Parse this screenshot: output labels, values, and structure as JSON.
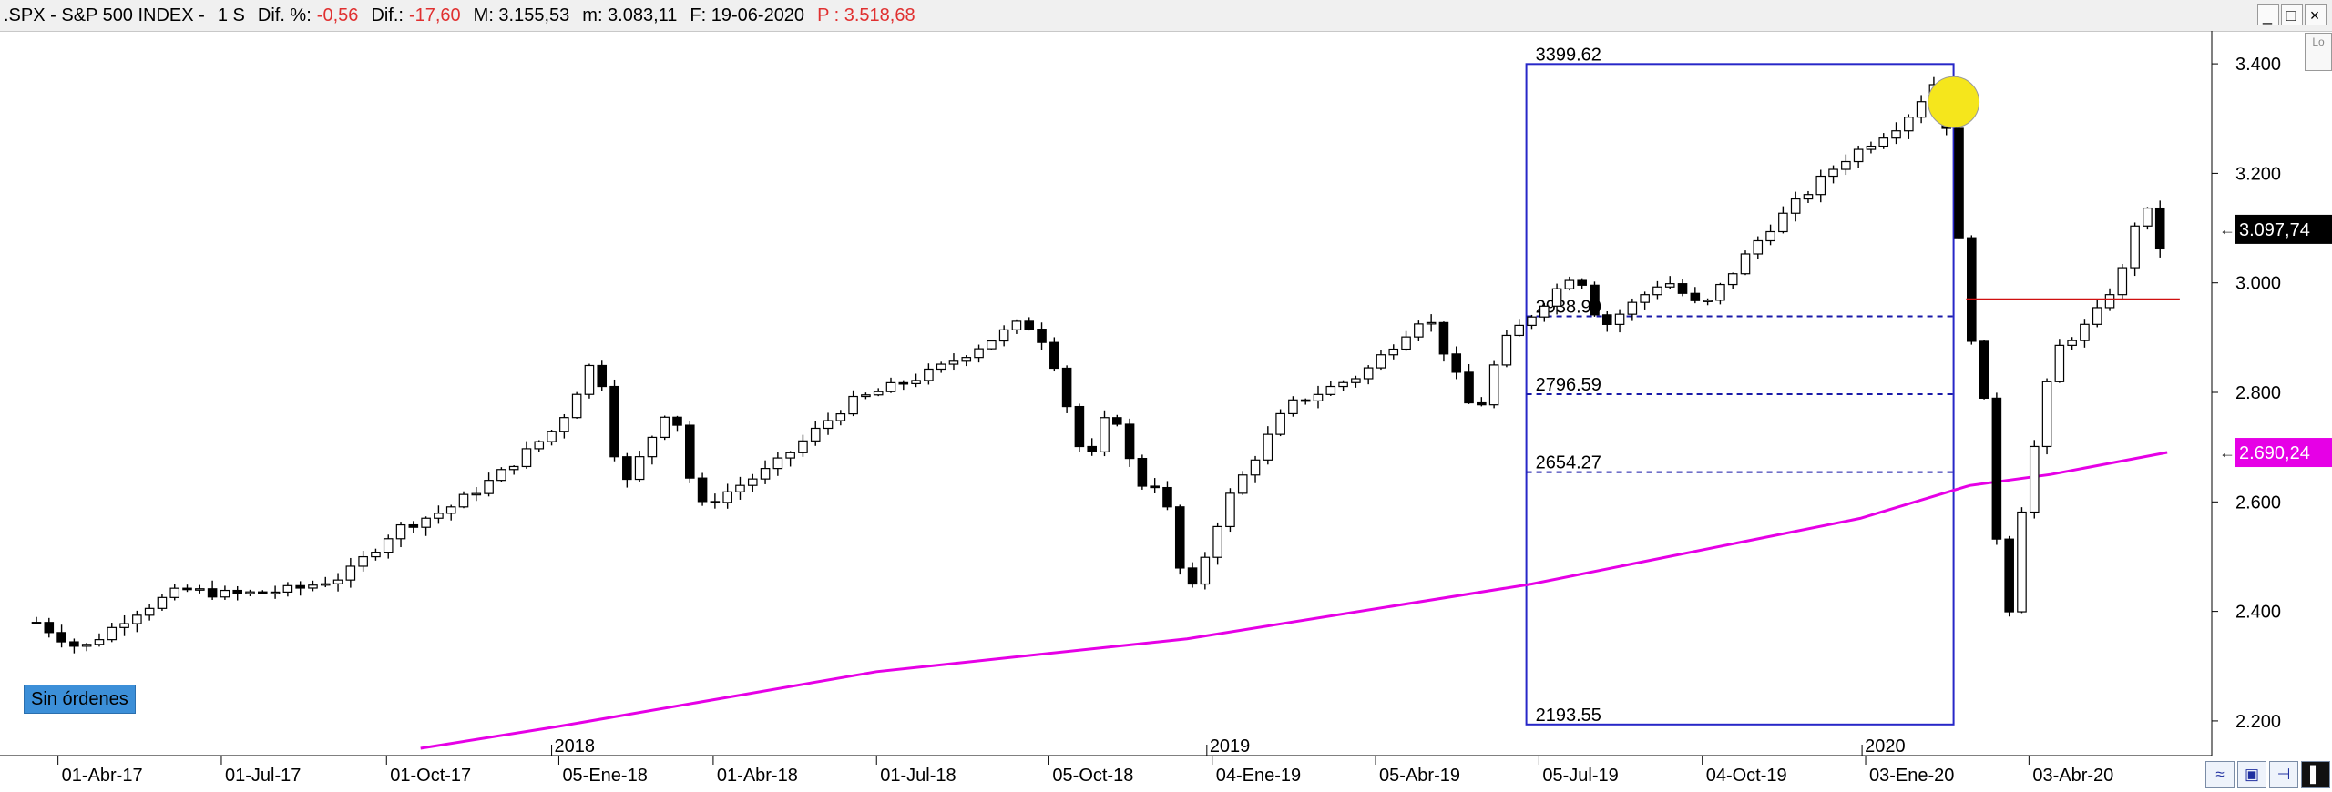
{
  "header": {
    "symbol": ".SPX - S&P 500 INDEX -",
    "period": "1 S",
    "dif_pct_label": "Dif. %:",
    "dif_pct_value": "-0,56",
    "dif_label": "Dif.:",
    "dif_value": "-17,60",
    "max_label": "M: 3.155,53",
    "min_label": "m: 3.083,11",
    "date_label": "F: 19-06-2020",
    "p_label": "P : 3.518,68"
  },
  "window_controls": [
    "_",
    "□",
    "×"
  ],
  "orders_badge": "Sin órdenes",
  "corner_badge": "Lo",
  "toolbar_icons": [
    "chart-toggle-icon",
    "save-icon",
    "pin-icon",
    "panel-icon"
  ],
  "colors": {
    "moving_average": "#e600e6",
    "fib_box": "#2727c8",
    "fib_lines": "#1a1aa8",
    "support_line": "#d01010",
    "highlight_circle": "#f5e61c",
    "highlight_candle": "#22cc22",
    "candle_up": "#ffffff",
    "candle_down": "#000000"
  },
  "chart_data": {
    "type": "candlestick",
    "title": ".SPX - S&P 500 INDEX",
    "ylim": [
      2150,
      3460
    ],
    "y_ticks": [
      2200,
      2400,
      2600,
      2800,
      3000,
      3200,
      3400
    ],
    "y_tick_labels": [
      "2.200",
      "2.400",
      "2.600",
      "2.800",
      "3.000",
      "3.200",
      "3.400"
    ],
    "x_range": [
      "2017-03-20",
      "2020-06-22"
    ],
    "x_tick_labels": [
      {
        "date": "2017-04-01",
        "label": "01-Abr-17"
      },
      {
        "date": "2017-07-01",
        "label": "01-Jul-17"
      },
      {
        "date": "2017-10-01",
        "label": "01-Oct-17"
      },
      {
        "date": "2018-01-05",
        "label": "05-Ene-18"
      },
      {
        "date": "2018-04-01",
        "label": "01-Abr-18"
      },
      {
        "date": "2018-07-01",
        "label": "01-Jul-18"
      },
      {
        "date": "2018-10-05",
        "label": "05-Oct-18"
      },
      {
        "date": "2019-01-04",
        "label": "04-Ene-19"
      },
      {
        "date": "2019-04-05",
        "label": "05-Abr-19"
      },
      {
        "date": "2019-07-05",
        "label": "05-Jul-19"
      },
      {
        "date": "2019-10-04",
        "label": "04-Oct-19"
      },
      {
        "date": "2020-01-03",
        "label": "03-Ene-20"
      },
      {
        "date": "2020-04-03",
        "label": "03-Abr-20"
      }
    ],
    "year_labels": [
      {
        "date": "2018-01-01",
        "label": "2018"
      },
      {
        "date": "2019-01-01",
        "label": "2019"
      },
      {
        "date": "2020-01-01",
        "label": "2020"
      }
    ],
    "price_anchors": [
      [
        "2017-03-20",
        2380
      ],
      [
        "2017-04-14",
        2330
      ],
      [
        "2017-05-12",
        2395
      ],
      [
        "2017-06-09",
        2440
      ],
      [
        "2017-07-07",
        2430
      ],
      [
        "2017-08-11",
        2440
      ],
      [
        "2017-09-08",
        2465
      ],
      [
        "2017-10-06",
        2550
      ],
      [
        "2017-11-03",
        2585
      ],
      [
        "2017-12-01",
        2645
      ],
      [
        "2018-01-05",
        2740
      ],
      [
        "2018-01-26",
        2872
      ],
      [
        "2018-02-09",
        2619
      ],
      [
        "2018-03-09",
        2786
      ],
      [
        "2018-03-23",
        2588
      ],
      [
        "2018-05-04",
        2663
      ],
      [
        "2018-06-15",
        2780
      ],
      [
        "2018-08-03",
        2840
      ],
      [
        "2018-09-21",
        2930
      ],
      [
        "2018-10-05",
        2885
      ],
      [
        "2018-10-26",
        2658
      ],
      [
        "2018-11-09",
        2781
      ],
      [
        "2018-11-23",
        2633
      ],
      [
        "2018-12-07",
        2632
      ],
      [
        "2018-12-21",
        2416
      ],
      [
        "2019-01-11",
        2596
      ],
      [
        "2019-02-15",
        2775
      ],
      [
        "2019-03-29",
        2834
      ],
      [
        "2019-05-03",
        2945
      ],
      [
        "2019-05-31",
        2752
      ],
      [
        "2019-06-14",
        2886
      ],
      [
        "2019-07-26",
        3025
      ],
      [
        "2019-08-09",
        2918
      ],
      [
        "2019-09-13",
        3007
      ],
      [
        "2019-10-04",
        2952
      ],
      [
        "2019-11-08",
        3093
      ],
      [
        "2019-12-20",
        3221
      ],
      [
        "2020-01-24",
        3295
      ],
      [
        "2020-02-14",
        3380
      ],
      [
        "2020-02-28",
        2954
      ],
      [
        "2020-03-13",
        2711
      ],
      [
        "2020-03-20",
        2305
      ],
      [
        "2020-03-27",
        2541
      ],
      [
        "2020-04-17",
        2875
      ],
      [
        "2020-05-08",
        2930
      ],
      [
        "2020-05-29",
        3044
      ],
      [
        "2020-06-05",
        3194
      ],
      [
        "2020-06-12",
        3041
      ],
      [
        "2020-06-19",
        3097.74
      ]
    ],
    "featured_candles": [
      {
        "date": "2020-02-28",
        "open": 3255,
        "high": 3260,
        "low": 2855,
        "close": 2954
      },
      {
        "date": "2020-03-06",
        "open": 2954,
        "high": 2985,
        "low": 2900,
        "close": 2972
      },
      {
        "date": "2020-03-13",
        "open": 2972,
        "high": 2980,
        "low": 2478,
        "close": 2711
      },
      {
        "date": "2020-03-20",
        "open": 2711,
        "high": 2720,
        "low": 2280,
        "close": 2305
      },
      {
        "date": "2020-03-27",
        "open": 2305,
        "high": 2640,
        "low": 2191,
        "close": 2541
      },
      {
        "date": "2020-04-03",
        "open": 2541,
        "high": 2550,
        "low": 2447,
        "close": 2488
      },
      {
        "date": "2020-06-05",
        "open": 3038,
        "high": 3211,
        "low": 3027,
        "close": 3194
      },
      {
        "date": "2020-06-12",
        "open": 3194,
        "high": 3233,
        "low": 2984,
        "close": 3041
      },
      {
        "date": "2020-06-19",
        "open": 3041,
        "high": 3155.53,
        "low": 2965,
        "close": 3097.74
      }
    ],
    "series": [
      {
        "name": "Media móvil",
        "points": [
          [
            "2017-10-20",
            2150
          ],
          [
            "2018-01-05",
            2190
          ],
          [
            "2018-07-01",
            2290
          ],
          [
            "2018-12-21",
            2350
          ],
          [
            "2019-07-01",
            2450
          ],
          [
            "2019-12-31",
            2570
          ],
          [
            "2020-03-01",
            2630
          ],
          [
            "2020-04-15",
            2650
          ],
          [
            "2020-06-19",
            2690.24
          ]
        ]
      }
    ],
    "fibonacci": {
      "start_date": "2019-06-28",
      "end_date": "2020-02-21",
      "levels": [
        {
          "value": 3399.62,
          "label": "3399.62"
        },
        {
          "value": 2938.9,
          "label": "2938.90"
        },
        {
          "value": 2796.59,
          "label": "2796.59"
        },
        {
          "value": 2654.27,
          "label": "2654.27"
        },
        {
          "value": 2193.55,
          "label": "2193.55"
        }
      ]
    },
    "support_line": {
      "value": 2970,
      "start_date": "2020-02-28",
      "end_date": "2020-06-26"
    },
    "highlight": {
      "date": "2020-02-21",
      "value": 3330
    },
    "highlight_candle_date": "2020-03-06",
    "last_price": {
      "value": 3097.74,
      "label": "3.097,74"
    },
    "ma_price": {
      "value": 2690.24,
      "label": "2.690,24"
    }
  }
}
